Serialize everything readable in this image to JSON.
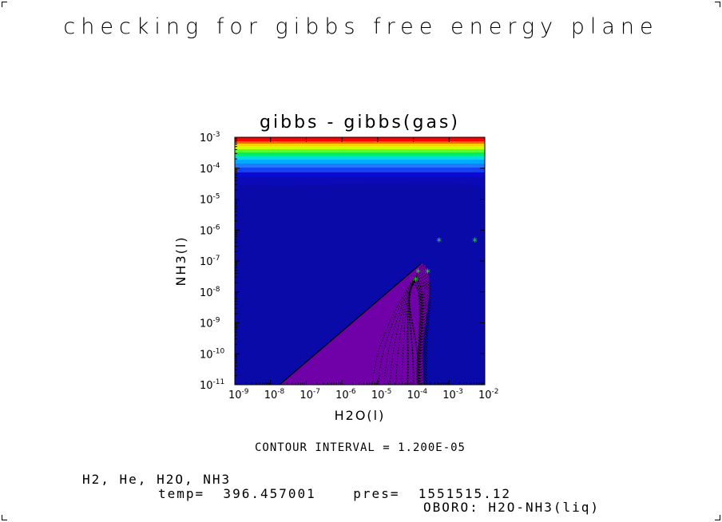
{
  "page_title": "checking for gibbs free energy plane",
  "footer": {
    "species": "H2, He, H2O, NH3",
    "conditions": "temp=  396.457001    pres=  1551515.12",
    "run_label": "OBORO: H2O-NH3(liq)"
  },
  "colors": {
    "background_fill": "#0a0aa8",
    "lower_region_fill": "#7000a8",
    "contour_line": "#000000",
    "marker": "#22e022",
    "band_colors": [
      "#ff0000",
      "#ff6a00",
      "#ffd000",
      "#ccff00",
      "#55ff33",
      "#00ee66",
      "#00dddd",
      "#00aaff",
      "#2277ff",
      "#1144ee",
      "#0a0ad0",
      "#0a0ab8"
    ]
  },
  "chart_data": {
    "type": "contour",
    "title": "gibbs - gibbs(gas)",
    "xlabel": "H2O(l)",
    "ylabel": "NH3(l)",
    "x_scale": "log",
    "y_scale": "log",
    "xlim": [
      1e-09,
      0.01
    ],
    "ylim": [
      1e-11,
      0.001
    ],
    "x_ticks": [
      {
        "base": "10",
        "exp": "-9"
      },
      {
        "base": "10",
        "exp": "-8"
      },
      {
        "base": "10",
        "exp": "-7"
      },
      {
        "base": "10",
        "exp": "-6"
      },
      {
        "base": "10",
        "exp": "-5"
      },
      {
        "base": "10",
        "exp": "-4"
      },
      {
        "base": "10",
        "exp": "-3"
      },
      {
        "base": "10",
        "exp": "-2"
      }
    ],
    "y_ticks": [
      {
        "base": "10",
        "exp": "-11"
      },
      {
        "base": "10",
        "exp": "-10"
      },
      {
        "base": "10",
        "exp": "-9"
      },
      {
        "base": "10",
        "exp": "-8"
      },
      {
        "base": "10",
        "exp": "-7"
      },
      {
        "base": "10",
        "exp": "-6"
      },
      {
        "base": "10",
        "exp": "-5"
      },
      {
        "base": "10",
        "exp": "-4"
      },
      {
        "base": "10",
        "exp": "-3"
      }
    ],
    "contour_interval_label": "CONTOUR INTERVAL = 1.200E-05",
    "markers": [
      {
        "x": 0.00011,
        "y": 2.5e-08
      },
      {
        "x": 0.00013,
        "y": 4.5e-08
      },
      {
        "x": 0.00024,
        "y": 4.5e-08
      },
      {
        "x": 0.0005,
        "y": 4.5e-07
      },
      {
        "x": 0.005,
        "y": 4.5e-07
      }
    ],
    "marker_symbol": "*",
    "boundary_line": {
      "x": [
        1.8e-08,
        0.00016
      ],
      "y": [
        1e-11,
        8e-08
      ]
    }
  }
}
